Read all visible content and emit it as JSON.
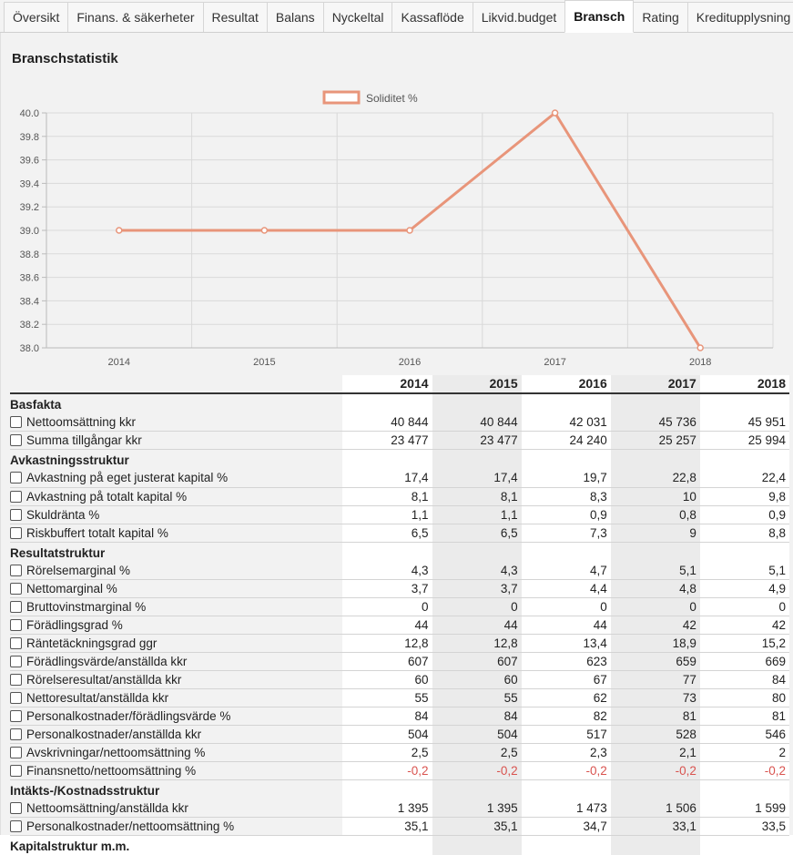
{
  "tabs": [
    {
      "label": "Översikt",
      "active": false
    },
    {
      "label": "Finans. & säkerheter",
      "active": false
    },
    {
      "label": "Resultat",
      "active": false
    },
    {
      "label": "Balans",
      "active": false
    },
    {
      "label": "Nyckeltal",
      "active": false
    },
    {
      "label": "Kassaflöde",
      "active": false
    },
    {
      "label": "Likvid.budget",
      "active": false
    },
    {
      "label": "Bransch",
      "active": true
    },
    {
      "label": "Rating",
      "active": false
    },
    {
      "label": "Kreditupplysning",
      "active": false
    }
  ],
  "page_title": "Branschstatistik",
  "chart_data": {
    "type": "line",
    "x": [
      "2014",
      "2015",
      "2016",
      "2017",
      "2018"
    ],
    "series": [
      {
        "name": "Soliditet %",
        "values": [
          39.0,
          39.0,
          39.0,
          40.0,
          38.0
        ],
        "color": "#E8957A"
      }
    ],
    "ylim": [
      38.0,
      40.0
    ],
    "yticks": [
      "38.0",
      "38.2",
      "38.4",
      "38.6",
      "38.8",
      "39.0",
      "39.2",
      "39.4",
      "39.6",
      "39.8",
      "40.0"
    ],
    "grid": true,
    "legend": "top-center"
  },
  "table": {
    "years": [
      "2014",
      "2015",
      "2016",
      "2017",
      "2018"
    ],
    "sections": [
      {
        "title": "Basfakta",
        "rows": [
          {
            "label": "Nettoomsättning kkr",
            "values": [
              "40 844",
              "40 844",
              "42 031",
              "45 736",
              "45 951"
            ]
          },
          {
            "label": "Summa tillgångar kkr",
            "values": [
              "23 477",
              "23 477",
              "24 240",
              "25 257",
              "25 994"
            ]
          }
        ]
      },
      {
        "title": "Avkastningsstruktur",
        "rows": [
          {
            "label": "Avkastning på eget justerat kapital %",
            "values": [
              "17,4",
              "17,4",
              "19,7",
              "22,8",
              "22,4"
            ]
          },
          {
            "label": "Avkastning på totalt kapital %",
            "values": [
              "8,1",
              "8,1",
              "8,3",
              "10",
              "9,8"
            ]
          },
          {
            "label": "Skuldränta %",
            "values": [
              "1,1",
              "1,1",
              "0,9",
              "0,8",
              "0,9"
            ]
          },
          {
            "label": "Riskbuffert totalt kapital %",
            "values": [
              "6,5",
              "6,5",
              "7,3",
              "9",
              "8,8"
            ]
          }
        ]
      },
      {
        "title": "Resultatstruktur",
        "rows": [
          {
            "label": "Rörelsemarginal %",
            "values": [
              "4,3",
              "4,3",
              "4,7",
              "5,1",
              "5,1"
            ]
          },
          {
            "label": "Nettomarginal %",
            "values": [
              "3,7",
              "3,7",
              "4,4",
              "4,8",
              "4,9"
            ]
          },
          {
            "label": "Bruttovinstmarginal %",
            "values": [
              "0",
              "0",
              "0",
              "0",
              "0"
            ]
          },
          {
            "label": "Förädlingsgrad %",
            "values": [
              "44",
              "44",
              "44",
              "42",
              "42"
            ]
          },
          {
            "label": "Räntetäckningsgrad ggr",
            "values": [
              "12,8",
              "12,8",
              "13,4",
              "18,9",
              "15,2"
            ]
          },
          {
            "label": "Förädlingsvärde/anställda kkr",
            "values": [
              "607",
              "607",
              "623",
              "659",
              "669"
            ]
          },
          {
            "label": "Rörelseresultat/anställda kkr",
            "values": [
              "60",
              "60",
              "67",
              "77",
              "84"
            ]
          },
          {
            "label": "Nettoresultat/anställda kkr",
            "values": [
              "55",
              "55",
              "62",
              "73",
              "80"
            ]
          },
          {
            "label": "Personalkostnader/förädlingsvärde %",
            "values": [
              "84",
              "84",
              "82",
              "81",
              "81"
            ]
          },
          {
            "label": "Personalkostnader/anställda kkr",
            "values": [
              "504",
              "504",
              "517",
              "528",
              "546"
            ]
          },
          {
            "label": "Avskrivningar/nettoomsättning %",
            "values": [
              "2,5",
              "2,5",
              "2,3",
              "2,1",
              "2"
            ]
          },
          {
            "label": "Finansnetto/nettoomsättning %",
            "values": [
              "-0,2",
              "-0,2",
              "-0,2",
              "-0,2",
              "-0,2"
            ]
          }
        ]
      },
      {
        "title": "Intäkts-/Kostnadsstruktur",
        "rows": [
          {
            "label": "Nettoomsättning/anställda kkr",
            "values": [
              "1 395",
              "1 395",
              "1 473",
              "1 506",
              "1 599"
            ]
          },
          {
            "label": "Personalkostnader/nettoomsättning %",
            "values": [
              "35,1",
              "35,1",
              "34,7",
              "33,1",
              "33,5"
            ]
          }
        ]
      },
      {
        "title": "Kapitalstruktur m.m.",
        "rows": []
      }
    ]
  }
}
